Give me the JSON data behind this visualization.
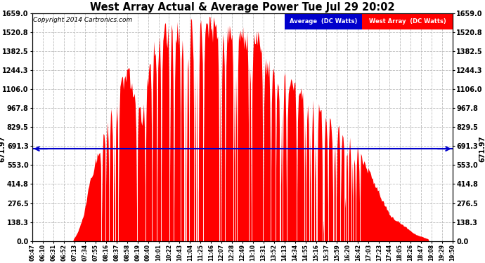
{
  "title": "West Array Actual & Average Power Tue Jul 29 20:02",
  "copyright": "Copyright 2014 Cartronics.com",
  "average_value": 671.97,
  "y_max": 1659.0,
  "y_min": 0.0,
  "yticks": [
    0.0,
    138.3,
    276.5,
    414.8,
    553.0,
    691.3,
    829.5,
    967.8,
    1106.0,
    1244.3,
    1382.5,
    1520.8,
    1659.0
  ],
  "bg_color": "#ffffff",
  "grid_color": "#bbbbbb",
  "bar_color": "#ff0000",
  "avg_line_color": "#0000cc",
  "legend_avg_bg": "#0000cc",
  "legend_west_bg": "#ff0000",
  "x_labels": [
    "05:47",
    "06:10",
    "06:31",
    "06:52",
    "07:13",
    "07:34",
    "07:55",
    "08:16",
    "08:37",
    "08:58",
    "09:19",
    "09:40",
    "10:01",
    "10:22",
    "10:43",
    "11:04",
    "11:25",
    "11:46",
    "12:07",
    "12:28",
    "12:49",
    "13:10",
    "13:31",
    "13:52",
    "14:13",
    "14:34",
    "14:55",
    "15:16",
    "15:37",
    "15:59",
    "16:20",
    "16:42",
    "17:03",
    "17:23",
    "17:44",
    "18:05",
    "18:26",
    "18:47",
    "19:08",
    "19:29",
    "19:50"
  ]
}
